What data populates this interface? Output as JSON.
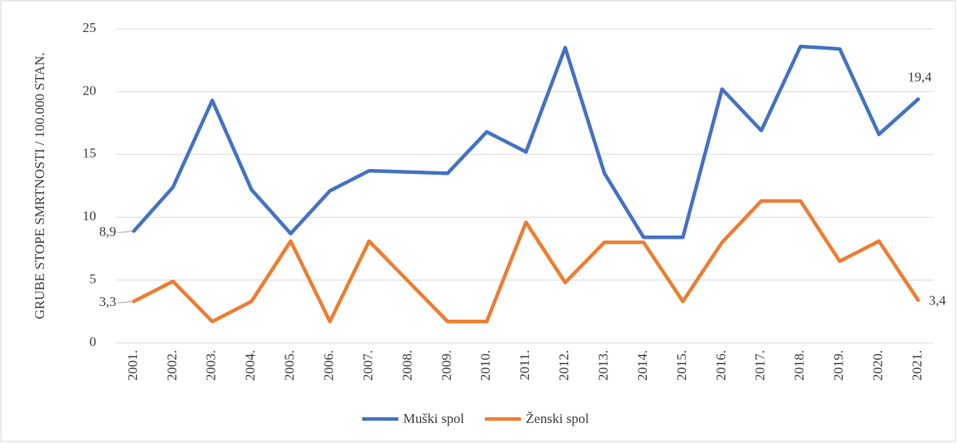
{
  "chart_data": {
    "type": "line",
    "y_label": "GRUBE STOPE SMRTNOSTI / 100.000 STAN.",
    "categories": [
      "2001.",
      "2002.",
      "2003.",
      "2004.",
      "2005.",
      "2006.",
      "2007.",
      "2008.",
      "2009.",
      "2010.",
      "2011.",
      "2012.",
      "2013.",
      "2014.",
      "2015.",
      "2016.",
      "2017.",
      "2018.",
      "2019.",
      "2020.",
      "2021."
    ],
    "series": [
      {
        "name": "Muški spol",
        "color": "#4472c4",
        "values": [
          8.9,
          12.4,
          19.3,
          12.2,
          8.7,
          12.1,
          13.7,
          13.6,
          13.5,
          16.8,
          15.2,
          23.5,
          13.5,
          8.4,
          8.4,
          20.2,
          16.9,
          23.6,
          23.4,
          16.6,
          19.4
        ],
        "value_labels": [
          "8,9",
          null,
          null,
          null,
          null,
          null,
          null,
          null,
          null,
          null,
          null,
          null,
          null,
          null,
          null,
          null,
          null,
          null,
          null,
          null,
          "19,4"
        ]
      },
      {
        "name": "Ženski spol",
        "color": "#ed7d31",
        "values": [
          3.3,
          4.9,
          1.7,
          3.3,
          8.1,
          1.7,
          8.1,
          4.9,
          1.7,
          1.7,
          9.6,
          4.8,
          8.0,
          8.0,
          3.3,
          8.0,
          11.3,
          11.3,
          6.5,
          8.1,
          3.4
        ],
        "value_labels": [
          "3,3",
          null,
          null,
          null,
          null,
          null,
          null,
          null,
          null,
          null,
          null,
          null,
          null,
          null,
          null,
          null,
          null,
          null,
          null,
          null,
          "3,4"
        ]
      }
    ],
    "ylim": [
      0,
      25
    ],
    "yticks": [
      0,
      5,
      10,
      15,
      20,
      25
    ],
    "grid": true,
    "legend": "bottom"
  }
}
